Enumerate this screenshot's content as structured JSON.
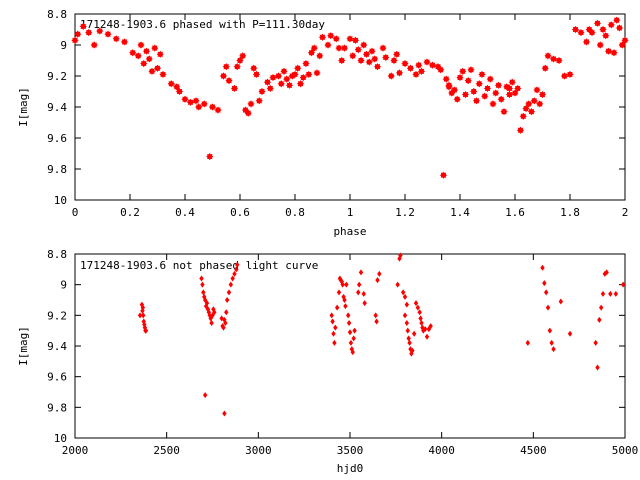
{
  "chart_data": [
    {
      "type": "scatter",
      "title": "171248-1903.6 phased with P=111.30day",
      "xlabel": "phase",
      "ylabel": "I[mag]",
      "xlim": [
        0,
        2
      ],
      "ylim": [
        10,
        8.8
      ],
      "y_inverted": true,
      "x_ticks": [
        "0",
        "0.2",
        "0.4",
        "0.6",
        "0.8",
        "1",
        "1.2",
        "1.4",
        "1.6",
        "1.8",
        "2"
      ],
      "y_ticks": [
        "8.8",
        "9",
        "9.2",
        "9.4",
        "9.6",
        "9.8",
        "10"
      ],
      "marker": "filled-star",
      "color": "#ff0000",
      "points": [
        [
          0.0,
          8.97
        ],
        [
          0.01,
          8.93
        ],
        [
          0.03,
          8.88
        ],
        [
          0.05,
          8.92
        ],
        [
          0.07,
          9.0
        ],
        [
          0.09,
          8.91
        ],
        [
          0.12,
          8.93
        ],
        [
          0.15,
          8.96
        ],
        [
          0.18,
          8.98
        ],
        [
          0.21,
          9.05
        ],
        [
          0.23,
          9.07
        ],
        [
          0.24,
          9.0
        ],
        [
          0.25,
          9.12
        ],
        [
          0.26,
          9.04
        ],
        [
          0.27,
          9.09
        ],
        [
          0.28,
          9.17
        ],
        [
          0.29,
          9.02
        ],
        [
          0.3,
          9.15
        ],
        [
          0.31,
          9.06
        ],
        [
          0.32,
          9.19
        ],
        [
          0.35,
          9.25
        ],
        [
          0.37,
          9.27
        ],
        [
          0.38,
          9.3
        ],
        [
          0.4,
          9.35
        ],
        [
          0.42,
          9.37
        ],
        [
          0.44,
          9.36
        ],
        [
          0.45,
          9.4
        ],
        [
          0.47,
          9.38
        ],
        [
          0.5,
          9.4
        ],
        [
          0.52,
          9.42
        ],
        [
          0.49,
          9.72
        ],
        [
          0.54,
          9.2
        ],
        [
          0.55,
          9.14
        ],
        [
          0.56,
          9.23
        ],
        [
          0.58,
          9.28
        ],
        [
          0.59,
          9.14
        ],
        [
          0.6,
          9.1
        ],
        [
          0.61,
          9.07
        ],
        [
          0.62,
          9.42
        ],
        [
          0.63,
          9.44
        ],
        [
          0.64,
          9.38
        ],
        [
          0.65,
          9.15
        ],
        [
          0.66,
          9.19
        ],
        [
          0.67,
          9.36
        ],
        [
          0.68,
          9.3
        ],
        [
          0.7,
          9.24
        ],
        [
          0.71,
          9.28
        ],
        [
          0.72,
          9.21
        ],
        [
          0.74,
          9.2
        ],
        [
          0.75,
          9.25
        ],
        [
          0.76,
          9.17
        ],
        [
          0.77,
          9.22
        ],
        [
          0.78,
          9.26
        ],
        [
          0.79,
          9.2
        ],
        [
          0.8,
          9.19
        ],
        [
          0.81,
          9.15
        ],
        [
          0.82,
          9.25
        ],
        [
          0.83,
          9.21
        ],
        [
          0.84,
          9.12
        ],
        [
          0.85,
          9.19
        ],
        [
          0.86,
          9.05
        ],
        [
          0.87,
          9.02
        ],
        [
          0.88,
          9.18
        ],
        [
          0.89,
          9.07
        ],
        [
          0.9,
          8.95
        ],
        [
          0.92,
          9.0
        ],
        [
          0.93,
          8.94
        ],
        [
          0.95,
          8.96
        ],
        [
          0.96,
          9.02
        ],
        [
          0.97,
          9.1
        ],
        [
          0.98,
          9.02
        ],
        [
          1.0,
          8.96
        ],
        [
          1.01,
          9.07
        ],
        [
          1.02,
          8.97
        ],
        [
          1.03,
          9.03
        ],
        [
          1.04,
          9.1
        ],
        [
          1.05,
          9.0
        ],
        [
          1.06,
          9.06
        ],
        [
          1.07,
          9.11
        ],
        [
          1.08,
          9.04
        ],
        [
          1.09,
          9.09
        ],
        [
          1.1,
          9.14
        ],
        [
          1.12,
          9.02
        ],
        [
          1.13,
          9.08
        ],
        [
          1.15,
          9.2
        ],
        [
          1.16,
          9.1
        ],
        [
          1.17,
          9.06
        ],
        [
          1.18,
          9.18
        ],
        [
          1.2,
          9.12
        ],
        [
          1.22,
          9.15
        ],
        [
          1.24,
          9.19
        ],
        [
          1.25,
          9.13
        ],
        [
          1.26,
          9.17
        ],
        [
          1.28,
          9.11
        ],
        [
          1.3,
          9.13
        ],
        [
          1.32,
          9.14
        ],
        [
          1.33,
          9.16
        ],
        [
          1.34,
          9.84
        ],
        [
          1.35,
          9.22
        ],
        [
          1.36,
          9.26
        ],
        [
          1.37,
          9.31
        ],
        [
          1.38,
          9.29
        ],
        [
          1.39,
          9.35
        ],
        [
          1.4,
          9.21
        ],
        [
          1.41,
          9.17
        ],
        [
          1.42,
          9.32
        ],
        [
          1.43,
          9.23
        ],
        [
          1.44,
          9.16
        ],
        [
          1.45,
          9.3
        ],
        [
          1.46,
          9.36
        ],
        [
          1.47,
          9.25
        ],
        [
          1.48,
          9.19
        ],
        [
          1.49,
          9.33
        ],
        [
          1.5,
          9.28
        ],
        [
          1.51,
          9.22
        ],
        [
          1.52,
          9.38
        ],
        [
          1.53,
          9.31
        ],
        [
          1.54,
          9.26
        ],
        [
          1.55,
          9.35
        ],
        [
          1.56,
          9.43
        ],
        [
          1.57,
          9.27
        ],
        [
          1.58,
          9.32
        ],
        [
          1.59,
          9.24
        ],
        [
          1.6,
          9.31
        ],
        [
          1.61,
          9.28
        ],
        [
          1.62,
          9.55
        ],
        [
          1.63,
          9.46
        ],
        [
          1.64,
          9.41
        ],
        [
          1.65,
          9.38
        ],
        [
          1.66,
          9.43
        ],
        [
          1.67,
          9.36
        ],
        [
          1.68,
          9.29
        ],
        [
          1.69,
          9.38
        ],
        [
          1.7,
          9.32
        ],
        [
          1.71,
          9.15
        ],
        [
          1.72,
          9.07
        ],
        [
          1.74,
          9.09
        ],
        [
          1.76,
          9.1
        ],
        [
          1.78,
          9.2
        ],
        [
          1.8,
          9.19
        ],
        [
          1.82,
          8.9
        ],
        [
          1.84,
          8.92
        ],
        [
          1.86,
          8.98
        ],
        [
          1.87,
          8.9
        ],
        [
          1.88,
          8.92
        ],
        [
          1.9,
          8.86
        ],
        [
          1.92,
          8.9
        ],
        [
          1.93,
          8.94
        ],
        [
          1.94,
          9.04
        ],
        [
          1.95,
          8.87
        ],
        [
          1.96,
          9.05
        ],
        [
          1.97,
          8.84
        ],
        [
          1.98,
          8.89
        ],
        [
          1.99,
          9.0
        ],
        [
          2.0,
          8.97
        ],
        [
          1.91,
          9.0
        ],
        [
          1.58,
          9.28
        ],
        [
          1.36,
          9.27
        ]
      ]
    },
    {
      "type": "scatter",
      "title": "171248-1903.6 not phased light curve",
      "xlabel": "hjd0",
      "ylabel": "I[mag]",
      "xlim": [
        2000,
        5000
      ],
      "ylim": [
        10,
        8.8
      ],
      "y_inverted": true,
      "x_ticks": [
        "2000",
        "2500",
        "3000",
        "3500",
        "4000",
        "4500",
        "5000"
      ],
      "y_ticks": [
        "8.8",
        "9",
        "9.2",
        "9.4",
        "9.6",
        "9.8",
        "10"
      ],
      "marker": "filled-diamond",
      "color": "#ff0000",
      "points": [
        [
          2355,
          9.2
        ],
        [
          2365,
          9.13
        ],
        [
          2370,
          9.15
        ],
        [
          2372,
          9.2
        ],
        [
          2375,
          9.24
        ],
        [
          2378,
          9.26
        ],
        [
          2381,
          9.28
        ],
        [
          2384,
          9.3
        ],
        [
          2387,
          9.3
        ],
        [
          2368,
          9.17
        ],
        [
          2690,
          8.96
        ],
        [
          2695,
          9.0
        ],
        [
          2700,
          9.05
        ],
        [
          2705,
          9.08
        ],
        [
          2710,
          9.1
        ],
        [
          2715,
          9.14
        ],
        [
          2720,
          9.12
        ],
        [
          2725,
          9.16
        ],
        [
          2730,
          9.18
        ],
        [
          2735,
          9.2
        ],
        [
          2740,
          9.22
        ],
        [
          2745,
          9.25
        ],
        [
          2750,
          9.2
        ],
        [
          2755,
          9.16
        ],
        [
          2760,
          9.18
        ],
        [
          2710,
          9.72
        ],
        [
          2800,
          9.22
        ],
        [
          2805,
          9.27
        ],
        [
          2810,
          9.28
        ],
        [
          2815,
          9.23
        ],
        [
          2820,
          9.25
        ],
        [
          2825,
          9.18
        ],
        [
          2830,
          9.1
        ],
        [
          2840,
          9.05
        ],
        [
          2850,
          9.0
        ],
        [
          2860,
          8.96
        ],
        [
          2870,
          8.93
        ],
        [
          2880,
          8.9
        ],
        [
          2885,
          8.87
        ],
        [
          2815,
          9.84
        ],
        [
          3400,
          9.2
        ],
        [
          3405,
          9.24
        ],
        [
          3410,
          9.32
        ],
        [
          3415,
          9.38
        ],
        [
          3420,
          9.28
        ],
        [
          3430,
          9.15
        ],
        [
          3440,
          9.05
        ],
        [
          3445,
          8.96
        ],
        [
          3450,
          8.97
        ],
        [
          3455,
          8.98
        ],
        [
          3460,
          9.0
        ],
        [
          3465,
          9.08
        ],
        [
          3470,
          9.1
        ],
        [
          3475,
          9.14
        ],
        [
          3480,
          9.0
        ],
        [
          3490,
          9.2
        ],
        [
          3495,
          9.25
        ],
        [
          3500,
          9.31
        ],
        [
          3505,
          9.38
        ],
        [
          3510,
          9.42
        ],
        [
          3515,
          9.44
        ],
        [
          3520,
          9.35
        ],
        [
          3525,
          9.3
        ],
        [
          3545,
          9.05
        ],
        [
          3550,
          9.0
        ],
        [
          3560,
          8.92
        ],
        [
          3575,
          9.06
        ],
        [
          3580,
          9.12
        ],
        [
          3640,
          9.2
        ],
        [
          3645,
          9.24
        ],
        [
          3650,
          8.97
        ],
        [
          3660,
          8.93
        ],
        [
          3770,
          8.83
        ],
        [
          3775,
          8.81
        ],
        [
          3760,
          9.0
        ],
        [
          3790,
          9.05
        ],
        [
          3800,
          9.2
        ],
        [
          3810,
          9.25
        ],
        [
          3815,
          9.3
        ],
        [
          3820,
          9.35
        ],
        [
          3825,
          9.38
        ],
        [
          3830,
          9.42
        ],
        [
          3835,
          9.45
        ],
        [
          3840,
          9.43
        ],
        [
          3850,
          9.32
        ],
        [
          3860,
          9.12
        ],
        [
          3870,
          9.15
        ],
        [
          3880,
          9.18
        ],
        [
          3885,
          9.22
        ],
        [
          3890,
          9.25
        ],
        [
          3895,
          9.28
        ],
        [
          3900,
          9.3
        ],
        [
          3910,
          9.29
        ],
        [
          3920,
          9.34
        ],
        [
          3930,
          9.29
        ],
        [
          3940,
          9.27
        ],
        [
          3800,
          9.08
        ],
        [
          3810,
          9.13
        ],
        [
          4470,
          9.38
        ],
        [
          4550,
          8.89
        ],
        [
          4560,
          8.99
        ],
        [
          4570,
          9.05
        ],
        [
          4580,
          9.15
        ],
        [
          4590,
          9.3
        ],
        [
          4600,
          9.38
        ],
        [
          4610,
          9.42
        ],
        [
          4650,
          9.11
        ],
        [
          4700,
          9.32
        ],
        [
          4840,
          9.38
        ],
        [
          4850,
          9.54
        ],
        [
          4860,
          9.23
        ],
        [
          4870,
          9.15
        ],
        [
          4880,
          9.06
        ],
        [
          4890,
          8.93
        ],
        [
          4900,
          8.92
        ],
        [
          4920,
          9.06
        ],
        [
          4950,
          9.06
        ],
        [
          4990,
          9.0
        ]
      ]
    }
  ]
}
